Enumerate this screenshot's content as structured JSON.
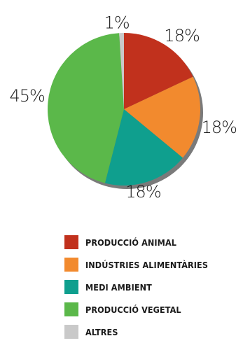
{
  "chart_data": {
    "type": "pie",
    "title": "",
    "slices": [
      {
        "label": "PRODUCCIÓ ANIMAL",
        "value": 18,
        "display": "18%",
        "color": "#c1311d"
      },
      {
        "label": "INDÚSTRIES ALIMENTÀRIES",
        "value": 18,
        "display": "18%",
        "color": "#f28a2e"
      },
      {
        "label": "MEDI AMBIENT",
        "value": 18,
        "display": "18%",
        "color": "#0f9f8e"
      },
      {
        "label": "PRODUCCIÓ VEGETAL",
        "value": 45,
        "display": "45%",
        "color": "#5bb84a"
      },
      {
        "label": "ALTRES",
        "value": 1,
        "display": "1%",
        "color": "#c9c9c9"
      }
    ],
    "legend_position": "bottom",
    "start_angle_deg": 0,
    "direction": "clockwise"
  },
  "style": {
    "shadow_color": "#7a7a7a",
    "label_color": "#1a1a1a"
  }
}
